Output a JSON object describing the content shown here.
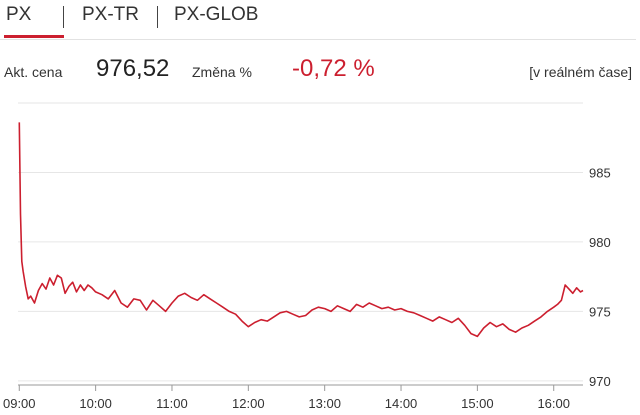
{
  "tabs": [
    {
      "label": "PX",
      "active": true
    },
    {
      "label": "PX-TR",
      "active": false
    },
    {
      "label": "PX-GLOB",
      "active": false
    }
  ],
  "quote": {
    "price_label": "Akt. cena",
    "price": "976,52",
    "change_label": "Změna %",
    "change": "-0,72 %",
    "realtime": "[v reálném čase]"
  },
  "colors": {
    "line": "#cc1f2f",
    "accent": "#cc1f2f",
    "grid": "#e6e6e6",
    "axis": "#999999",
    "text": "#333333"
  },
  "chart_data": {
    "type": "line",
    "title": "",
    "xlabel": "",
    "ylabel": "",
    "grid": true,
    "y_axis_side": "right",
    "xlim": [
      "08:59",
      "16:23"
    ],
    "ylim": [
      969.7,
      990
    ],
    "x_ticks": [
      "09:00",
      "10:00",
      "11:00",
      "12:00",
      "13:00",
      "14:00",
      "15:00",
      "16:00"
    ],
    "y_ticks": [
      970,
      975,
      980,
      985
    ],
    "series": [
      {
        "x": [
          "09:00",
          "09:01",
          "09:02",
          "09:03",
          "09:05",
          "09:07",
          "09:09",
          "09:12",
          "09:15",
          "09:18",
          "09:21",
          "09:24",
          "09:27",
          "09:30",
          "09:33",
          "09:36",
          "09:39",
          "09:42",
          "09:45",
          "09:48",
          "09:51",
          "09:54",
          "09:57",
          "10:00",
          "10:05",
          "10:10",
          "10:15",
          "10:20",
          "10:25",
          "10:30",
          "10:35",
          "10:40",
          "10:45",
          "10:50",
          "10:55",
          "11:00",
          "11:05",
          "11:10",
          "11:15",
          "11:20",
          "11:25",
          "11:30",
          "11:35",
          "11:40",
          "11:45",
          "11:50",
          "11:55",
          "12:00",
          "12:05",
          "12:10",
          "12:15",
          "12:20",
          "12:25",
          "12:30",
          "12:35",
          "12:40",
          "12:45",
          "12:50",
          "12:55",
          "13:00",
          "13:05",
          "13:10",
          "13:15",
          "13:20",
          "13:25",
          "13:30",
          "13:35",
          "13:40",
          "13:45",
          "13:50",
          "13:55",
          "14:00",
          "14:05",
          "14:10",
          "14:15",
          "14:20",
          "14:25",
          "14:30",
          "14:35",
          "14:40",
          "14:45",
          "14:50",
          "14:55",
          "15:00",
          "15:05",
          "15:10",
          "15:15",
          "15:20",
          "15:25",
          "15:30",
          "15:35",
          "15:40",
          "15:45",
          "15:50",
          "15:55",
          "16:00",
          "16:03",
          "16:06",
          "16:09",
          "16:12",
          "16:15",
          "16:18",
          "16:21",
          "16:23"
        ],
        "y": [
          988.6,
          982.0,
          978.6,
          977.9,
          976.8,
          975.9,
          976.1,
          975.6,
          976.5,
          977.0,
          976.6,
          977.4,
          976.9,
          977.6,
          977.4,
          976.3,
          976.8,
          977.1,
          976.4,
          976.9,
          976.5,
          976.9,
          976.7,
          976.4,
          976.2,
          975.9,
          976.5,
          975.6,
          975.3,
          975.9,
          975.8,
          975.1,
          975.8,
          975.4,
          975.0,
          975.6,
          976.1,
          976.3,
          976.0,
          975.8,
          976.2,
          975.9,
          975.6,
          975.3,
          975.0,
          974.8,
          974.3,
          973.9,
          974.2,
          974.4,
          974.3,
          974.6,
          974.9,
          975.0,
          974.8,
          974.6,
          974.7,
          975.1,
          975.3,
          975.2,
          975.0,
          975.4,
          975.2,
          975.0,
          975.5,
          975.3,
          975.6,
          975.4,
          975.2,
          975.3,
          975.1,
          975.2,
          975.0,
          974.9,
          974.7,
          974.5,
          974.3,
          974.6,
          974.4,
          974.2,
          974.5,
          974.0,
          973.4,
          973.2,
          973.8,
          974.2,
          973.9,
          974.1,
          973.7,
          973.5,
          973.8,
          974.0,
          974.3,
          974.6,
          975.0,
          975.3,
          975.5,
          975.8,
          976.9,
          976.6,
          976.3,
          976.7,
          976.4,
          976.5
        ]
      }
    ]
  }
}
